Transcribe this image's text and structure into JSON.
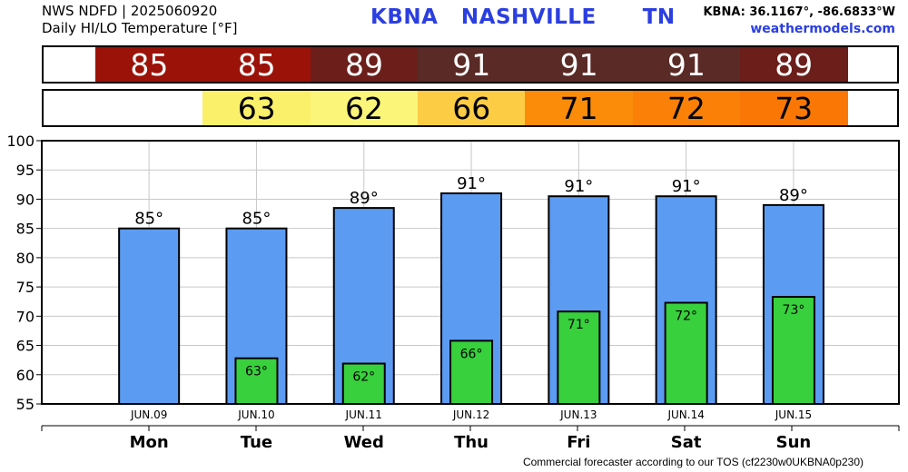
{
  "header": {
    "line1": "NWS NDFD | 2025060920",
    "line2": "Daily HI/LO Temperature [°F]",
    "station": "KBNA   NASHVILLE      TN",
    "coords": "KBNA: 36.1167°, -86.6833°W",
    "site": "weathermodels.com"
  },
  "hi_strip": [
    {
      "value": "85",
      "color": "#9b1208"
    },
    {
      "value": "85",
      "color": "#9b1208"
    },
    {
      "value": "89",
      "color": "#6b1e1a"
    },
    {
      "value": "91",
      "color": "#5a2a26"
    },
    {
      "value": "91",
      "color": "#5a2a26"
    },
    {
      "value": "91",
      "color": "#5a2a26"
    },
    {
      "value": "89",
      "color": "#6b1e1a"
    }
  ],
  "lo_strip": [
    {
      "value": "",
      "color": "#ffffff"
    },
    {
      "value": "63",
      "color": "#fbf06a"
    },
    {
      "value": "62",
      "color": "#fbf57a"
    },
    {
      "value": "66",
      "color": "#fccc45"
    },
    {
      "value": "71",
      "color": "#fb8c0a"
    },
    {
      "value": "72",
      "color": "#fb8007"
    },
    {
      "value": "73",
      "color": "#fb7705"
    }
  ],
  "chart_data": {
    "type": "bar",
    "categories": [
      "JUN.09",
      "JUN.10",
      "JUN.11",
      "JUN.12",
      "JUN.13",
      "JUN.14",
      "JUN.15"
    ],
    "days": [
      "Mon",
      "Tue",
      "Wed",
      "Thu",
      "Fri",
      "Sat",
      "Sun"
    ],
    "series": [
      {
        "values": [
          85,
          85,
          88.5,
          91,
          90.5,
          90.5,
          89
        ],
        "labels": [
          "85°",
          "85°",
          "89°",
          "91°",
          "91°",
          "91°",
          "89°"
        ],
        "color": "#5b9cf2"
      },
      {
        "values": [
          null,
          62.8,
          61.9,
          65.8,
          70.8,
          72.3,
          73.3
        ],
        "labels": [
          "",
          "63°",
          "62°",
          "66°",
          "71°",
          "72°",
          "73°"
        ],
        "color": "#38d03c"
      }
    ],
    "ylim": [
      55,
      100
    ],
    "yticks": [
      "55",
      "60",
      "65",
      "70",
      "75",
      "80",
      "85",
      "90",
      "95",
      "100"
    ],
    "grid": true
  },
  "footer": "Commercial forecaster according to our TOS (cf2230w0UKBNA0p230)"
}
